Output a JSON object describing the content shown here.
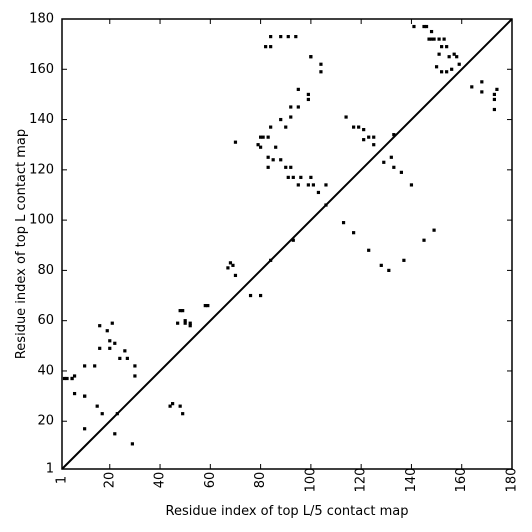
{
  "chart_data": {
    "type": "scatter",
    "title": "",
    "xlabel": "Residue index of top L/5 contact map",
    "ylabel": "Residue index of top L contact map",
    "xlim": [
      1,
      180
    ],
    "ylim": [
      1,
      180
    ],
    "xticks": [
      1,
      20,
      40,
      60,
      80,
      100,
      120,
      140,
      160,
      180
    ],
    "yticks": [
      1,
      20,
      40,
      60,
      80,
      100,
      120,
      140,
      160,
      180
    ],
    "grid": false,
    "diagonal": true,
    "colors": {
      "points": "#000000",
      "axes": "#000000",
      "background": "#ffffff"
    },
    "series": [
      {
        "name": "",
        "description_side": "upper-left triangle",
        "x": [
          84,
          84,
          88,
          91,
          94,
          100,
          100,
          104,
          104,
          82,
          95,
          92,
          92,
          95,
          88,
          90,
          99,
          99,
          84,
          86,
          81,
          83,
          80,
          79,
          80,
          70,
          83,
          83,
          85,
          88,
          90,
          92,
          93,
          91,
          96,
          99,
          101,
          106,
          95,
          100,
          103,
          76,
          80,
          68,
          67,
          69,
          70,
          58,
          59,
          50,
          50,
          52,
          49,
          47,
          48,
          52,
          21,
          19,
          16,
          20,
          22,
          26,
          24,
          27,
          30,
          30,
          20,
          16,
          10,
          10,
          14,
          10,
          6,
          6,
          5,
          5,
          3,
          2
        ],
        "y": [
          173,
          169,
          173,
          173,
          173,
          165,
          165,
          162,
          159,
          169,
          152,
          145,
          141,
          145,
          140,
          137,
          150,
          148,
          137,
          129,
          133,
          133,
          133,
          130,
          129,
          131,
          125,
          121,
          124,
          124,
          121,
          121,
          117,
          117,
          117,
          114,
          114,
          114,
          114,
          117,
          111,
          70,
          70,
          83,
          81,
          82,
          78,
          66,
          66,
          59,
          60,
          58,
          64,
          59,
          64,
          59,
          59,
          56,
          58,
          52,
          51,
          48,
          45,
          45,
          42,
          38,
          49,
          49,
          42,
          30,
          42,
          30,
          31,
          38,
          37,
          37,
          37,
          37
        ]
      },
      {
        "name": "",
        "description_side": "lower-right triangle",
        "x": [
          141,
          145,
          146,
          148,
          149,
          151,
          152,
          153,
          154,
          157,
          155,
          151,
          152,
          156,
          158,
          164,
          168,
          168,
          173,
          173,
          173,
          174,
          159,
          154,
          150,
          147,
          148,
          114,
          117,
          119,
          121,
          121,
          123,
          125,
          129,
          132,
          133,
          136,
          140,
          125,
          133,
          113,
          117,
          123,
          128,
          131,
          137,
          145,
          149,
          93,
          84,
          106,
          10,
          22,
          29,
          44,
          45,
          48,
          49,
          15,
          17,
          23
        ],
        "y": [
          177,
          177,
          177,
          175,
          172,
          172,
          169,
          172,
          169,
          166,
          165,
          166,
          159,
          160,
          165,
          153,
          155,
          151,
          150,
          148,
          144,
          152,
          162,
          159,
          161,
          172,
          172,
          141,
          137,
          137,
          136,
          132,
          133,
          133,
          123,
          125,
          121,
          119,
          114,
          130,
          134,
          99,
          95,
          88,
          82,
          80,
          84,
          92,
          96,
          92,
          84,
          106,
          17,
          15,
          11,
          26,
          27,
          26,
          23,
          26,
          23,
          23
        ]
      }
    ]
  }
}
